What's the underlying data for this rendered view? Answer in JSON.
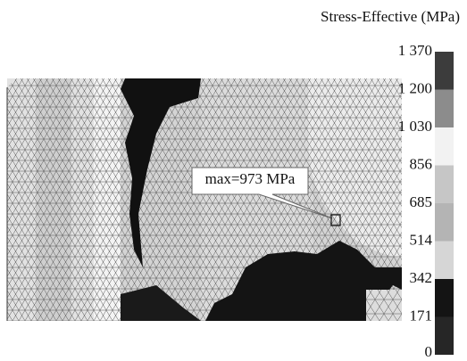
{
  "legend": {
    "title": "Stress-Effective (MPa)",
    "labels": [
      "1 370",
      "1 200",
      "1 030",
      "856",
      "685",
      "514",
      "342",
      "171",
      "0"
    ],
    "colors": [
      "#3c3c3c",
      "#8c8c8c",
      "#f2f2f2",
      "#c6c6c6",
      "#b4b4b4",
      "#d6d6d6",
      "#141414",
      "#262626"
    ]
  },
  "annotation": "max=973 MPa"
}
